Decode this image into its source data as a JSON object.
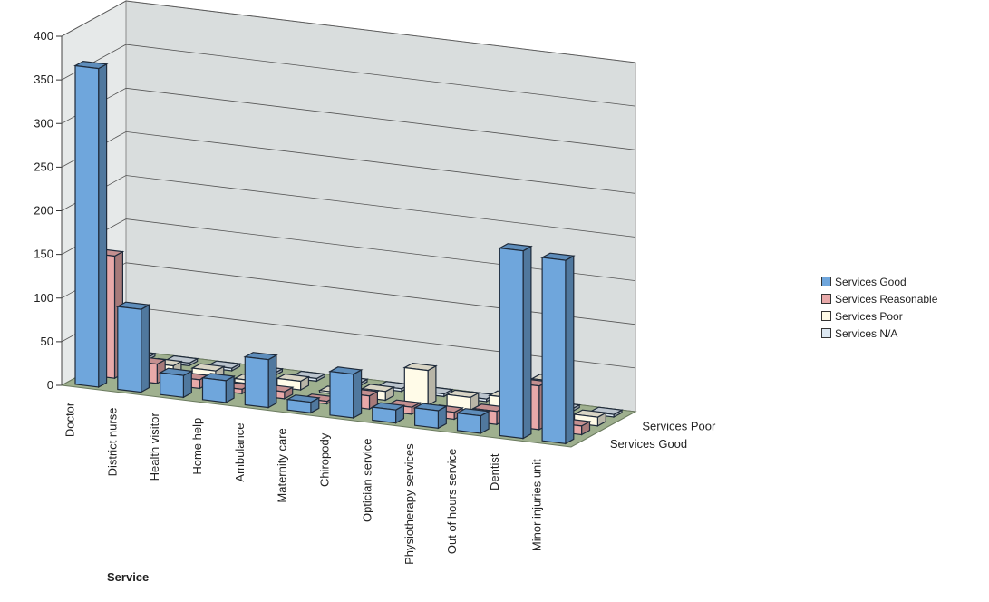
{
  "chart_data": {
    "type": "bar",
    "variant": "3d-bar",
    "xlabel": "Service",
    "ylabel": "",
    "ylim": [
      0,
      400
    ],
    "yticks": [
      0,
      50,
      100,
      150,
      200,
      250,
      300,
      350,
      400
    ],
    "grid": true,
    "legend_position": "right",
    "categories": [
      "Doctor",
      "District nurse",
      "Health visitor",
      "Home help",
      "Ambulance",
      "Maternity care",
      "Chiropody",
      "Optician service",
      "Physiotherapy services",
      "Out of hours service",
      "Dentist",
      "Minor injuries unit"
    ],
    "depth_labels": [
      "Services Good",
      "Services Poor"
    ],
    "series": [
      {
        "name": "Services Good",
        "color": "#6fa6dc",
        "values": [
          365,
          95,
          25,
          25,
          55,
          12,
          50,
          15,
          20,
          20,
          215,
          210
        ]
      },
      {
        "name": "Services Reasonable",
        "color": "#e8a9a9",
        "values": [
          140,
          22,
          10,
          5,
          8,
          3,
          15,
          8,
          8,
          15,
          50,
          10
        ]
      },
      {
        "name": "Services Poor",
        "color": "#fffbe8",
        "values": [
          5,
          10,
          10,
          4,
          10,
          2,
          10,
          40,
          15,
          20,
          45,
          10
        ]
      },
      {
        "name": "Services N/A",
        "color": "#dde8f2",
        "values": [
          3,
          3,
          3,
          3,
          3,
          3,
          3,
          3,
          3,
          3,
          3,
          3
        ]
      }
    ]
  }
}
